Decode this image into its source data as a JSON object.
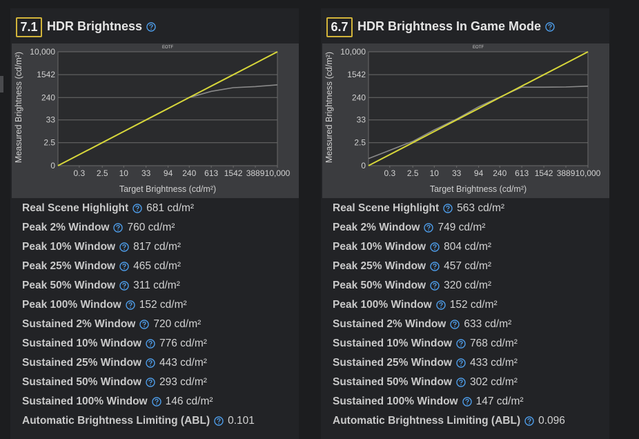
{
  "panels": [
    {
      "score": "7.1",
      "title": "HDR Brightness",
      "chart": {
        "type": "line",
        "title": "EOTF",
        "x_label": "Target Brightness (cd/m²)",
        "y_label": "Measured Brightness (cd/m²)",
        "scale": "pq",
        "grid": true,
        "xlim": [
          0,
          10000
        ],
        "ylim": [
          0,
          10000
        ],
        "xticks": [
          0.3,
          2.5,
          10,
          33,
          94,
          240,
          613,
          1542,
          3889,
          {
            "value": 10000,
            "label": "10,000"
          }
        ],
        "yticks": [
          0,
          2.5,
          33,
          240,
          1542,
          {
            "value": 10000,
            "label": "10,000"
          }
        ],
        "x": [
          0,
          2.5,
          10,
          33,
          94,
          240,
          613,
          1542,
          3889,
          10000
        ],
        "series": [
          {
            "color": "#8a8a8a",
            "values": [
              0,
              2.5,
              10,
              33,
              94,
              240,
              400,
              540,
              590,
              680
            ]
          },
          {
            "color": "#d6d63a",
            "values": [
              0,
              2.5,
              10,
              33,
              94,
              240,
              613,
              1542,
              3889,
              10000
            ]
          }
        ]
      },
      "rows": [
        {
          "label": "Real Scene Highlight",
          "value": "681 cd/m²"
        },
        {
          "label": "Peak 2% Window",
          "value": "760 cd/m²"
        },
        {
          "label": "Peak 10% Window",
          "value": "817 cd/m²"
        },
        {
          "label": "Peak 25% Window",
          "value": "465 cd/m²"
        },
        {
          "label": "Peak 50% Window",
          "value": "311 cd/m²"
        },
        {
          "label": "Peak 100% Window",
          "value": "152 cd/m²"
        },
        {
          "label": "Sustained 2% Window",
          "value": "720 cd/m²"
        },
        {
          "label": "Sustained 10% Window",
          "value": "776 cd/m²"
        },
        {
          "label": "Sustained 25% Window",
          "value": "443 cd/m²"
        },
        {
          "label": "Sustained 50% Window",
          "value": "293 cd/m²"
        },
        {
          "label": "Sustained 100% Window",
          "value": "146 cd/m²"
        },
        {
          "label": "Automatic Brightness Limiting (ABL)",
          "value": "0.101"
        }
      ]
    },
    {
      "score": "6.7",
      "title": "HDR Brightness In Game Mode",
      "chart": {
        "type": "line",
        "title": "EOTF",
        "x_label": "Target Brightness (cd/m²)",
        "y_label": "Measured Brightness (cd/m²)",
        "scale": "pq",
        "grid": true,
        "xlim": [
          0,
          10000
        ],
        "ylim": [
          0,
          10000
        ],
        "xticks": [
          0.3,
          2.5,
          10,
          33,
          94,
          240,
          613,
          1542,
          3889,
          {
            "value": 10000,
            "label": "10,000"
          }
        ],
        "yticks": [
          0,
          2.5,
          33,
          240,
          1542,
          {
            "value": 10000,
            "label": "10,000"
          }
        ],
        "x": [
          0,
          2.5,
          10,
          33,
          94,
          240,
          613,
          1542,
          3889,
          10000
        ],
        "series": [
          {
            "color": "#8a8a8a",
            "values": [
              0.1,
              3,
              12,
              36,
              110,
              250,
              560,
              560,
              570,
              610
            ]
          },
          {
            "color": "#d6d63a",
            "values": [
              0,
              2.5,
              10,
              33,
              94,
              240,
              613,
              1542,
              3889,
              10000
            ]
          }
        ]
      },
      "rows": [
        {
          "label": "Real Scene Highlight",
          "value": "563 cd/m²"
        },
        {
          "label": "Peak 2% Window",
          "value": "749 cd/m²"
        },
        {
          "label": "Peak 10% Window",
          "value": "804 cd/m²"
        },
        {
          "label": "Peak 25% Window",
          "value": "457 cd/m²"
        },
        {
          "label": "Peak 50% Window",
          "value": "320 cd/m²"
        },
        {
          "label": "Peak 100% Window",
          "value": "152 cd/m²"
        },
        {
          "label": "Sustained 2% Window",
          "value": "633 cd/m²"
        },
        {
          "label": "Sustained 10% Window",
          "value": "768 cd/m²"
        },
        {
          "label": "Sustained 25% Window",
          "value": "433 cd/m²"
        },
        {
          "label": "Sustained 50% Window",
          "value": "302 cd/m²"
        },
        {
          "label": "Sustained 100% Window",
          "value": "147 cd/m²"
        },
        {
          "label": "Automatic Brightness Limiting (ABL)",
          "value": "0.096"
        }
      ]
    }
  ]
}
